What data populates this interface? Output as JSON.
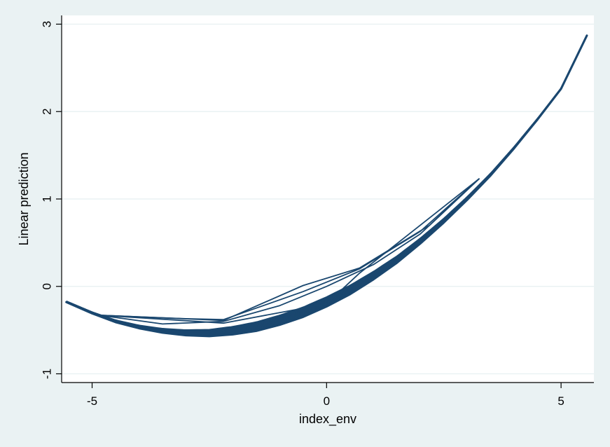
{
  "chart_data": {
    "type": "line",
    "title": "",
    "xlabel": "index_env",
    "ylabel": "Linear prediction",
    "xlim": [
      -5.65,
      5.7
    ],
    "ylim": [
      -1.1,
      3.1
    ],
    "x_ticks": [
      -5,
      0,
      5
    ],
    "y_ticks": [
      -1,
      0,
      1,
      2,
      3
    ],
    "x_tick_labels": [
      "-5",
      "0",
      "5"
    ],
    "y_tick_labels": [
      "-1",
      "0",
      "1",
      "2",
      "3"
    ],
    "grid": "horizontal",
    "legend": "none",
    "line_color": "#1a476f",
    "plot_background": "#ffffff",
    "page_background": "#eaf2f3",
    "series": [
      {
        "x": [
          -5.55,
          -5.0,
          -4.5,
          -4.0,
          -3.5,
          -3.0,
          -2.5,
          -2.0,
          -1.5,
          -1.0,
          -0.5,
          0.0,
          0.5,
          1.0,
          1.5,
          2.0,
          2.5,
          3.0,
          3.5,
          4.0,
          4.5,
          5.0,
          5.55
        ],
        "y": [
          -0.18,
          -0.31,
          -0.41,
          -0.48,
          -0.53,
          -0.56,
          -0.57,
          -0.55,
          -0.51,
          -0.44,
          -0.35,
          -0.23,
          -0.09,
          0.08,
          0.27,
          0.49,
          0.73,
          0.99,
          1.27,
          1.58,
          1.91,
          2.26,
          2.87
        ]
      },
      {
        "x": [
          -4.85,
          -3.5,
          -2.2,
          -1.0,
          0.0,
          1.0,
          2.0,
          3.25
        ],
        "y": [
          -0.33,
          -0.43,
          -0.4,
          -0.22,
          0.0,
          0.25,
          0.6,
          1.23
        ]
      },
      {
        "x": [
          -4.85,
          -3.0,
          -2.2,
          -0.5,
          0.7,
          2.0,
          3.25
        ],
        "y": [
          -0.33,
          -0.37,
          -0.38,
          -0.06,
          0.2,
          0.63,
          1.23
        ]
      },
      {
        "x": [
          -4.85,
          -2.2,
          -0.5,
          0.7,
          2.2,
          3.25
        ],
        "y": [
          -0.33,
          -0.39,
          0.01,
          0.21,
          0.7,
          1.23
        ]
      },
      {
        "x": [
          -4.85,
          -2.2,
          0.0,
          0.7,
          3.25
        ],
        "y": [
          -0.33,
          -0.42,
          -0.2,
          0.15,
          1.23
        ]
      }
    ]
  }
}
